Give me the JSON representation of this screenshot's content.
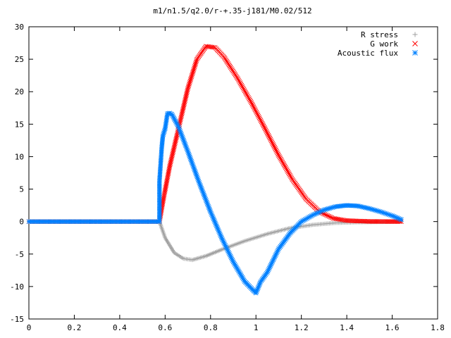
{
  "chart_data": {
    "type": "scatter",
    "title": "m1/n1.5/q2.0/r-+.35-j181/M0.02/512",
    "xlabel": "",
    "ylabel": "",
    "xlim": [
      0,
      1.8
    ],
    "ylim": [
      -15,
      30
    ],
    "x_ticks": [
      "0",
      "0.2",
      "0.4",
      "0.6",
      "0.8",
      "1",
      "1.2",
      "1.4",
      "1.6",
      "1.8"
    ],
    "y_ticks": [
      "-15",
      "-10",
      "-5",
      "0",
      "5",
      "10",
      "15",
      "20",
      "25",
      "30"
    ],
    "grid": false,
    "legend_position": "top-right",
    "series": [
      {
        "name": "R stress",
        "marker": "+",
        "color": "#a0a0a0",
        "points": [
          [
            0,
            0
          ],
          [
            0.2,
            0
          ],
          [
            0.4,
            0
          ],
          [
            0.575,
            0
          ],
          [
            0.6,
            -2.5
          ],
          [
            0.64,
            -4.8
          ],
          [
            0.68,
            -5.7
          ],
          [
            0.72,
            -5.9
          ],
          [
            0.78,
            -5.3
          ],
          [
            0.85,
            -4.3
          ],
          [
            0.95,
            -3.0
          ],
          [
            1.05,
            -1.9
          ],
          [
            1.15,
            -1.0
          ],
          [
            1.25,
            -0.5
          ],
          [
            1.35,
            -0.2
          ],
          [
            1.45,
            -0.1
          ],
          [
            1.55,
            -0.05
          ],
          [
            1.64,
            0
          ]
        ]
      },
      {
        "name": "G work",
        "marker": "x",
        "color": "#ff0000",
        "points": [
          [
            0,
            0
          ],
          [
            0.2,
            0
          ],
          [
            0.4,
            0
          ],
          [
            0.575,
            0
          ],
          [
            0.59,
            3
          ],
          [
            0.62,
            8.5
          ],
          [
            0.66,
            14.5
          ],
          [
            0.7,
            20.5
          ],
          [
            0.74,
            25
          ],
          [
            0.78,
            27
          ],
          [
            0.82,
            26.8
          ],
          [
            0.86,
            25.3
          ],
          [
            0.92,
            22
          ],
          [
            0.98,
            18.3
          ],
          [
            1.04,
            14.3
          ],
          [
            1.1,
            10.2
          ],
          [
            1.16,
            6.5
          ],
          [
            1.22,
            3.5
          ],
          [
            1.28,
            1.5
          ],
          [
            1.34,
            0.5
          ],
          [
            1.4,
            0.15
          ],
          [
            1.5,
            0.02
          ],
          [
            1.64,
            0
          ]
        ]
      },
      {
        "name": "Acoustic flux",
        "marker": "*",
        "color": "#0080ff",
        "points": [
          [
            0,
            0
          ],
          [
            0.2,
            0
          ],
          [
            0.4,
            0
          ],
          [
            0.575,
            0
          ],
          [
            0.575,
            6.2
          ],
          [
            0.585,
            11.4
          ],
          [
            0.59,
            13.2
          ],
          [
            0.6,
            14.3
          ],
          [
            0.61,
            16.6
          ],
          [
            0.62,
            16.7
          ],
          [
            0.63,
            16.5
          ],
          [
            0.66,
            14.5
          ],
          [
            0.7,
            10.8
          ],
          [
            0.75,
            6
          ],
          [
            0.8,
            1.5
          ],
          [
            0.85,
            -2.6
          ],
          [
            0.9,
            -6.2
          ],
          [
            0.95,
            -9.2
          ],
          [
            0.98,
            -10.3
          ],
          [
            1.0,
            -11
          ],
          [
            1.02,
            -9.3
          ],
          [
            1.05,
            -7.8
          ],
          [
            1.1,
            -4.2
          ],
          [
            1.15,
            -1.8
          ],
          [
            1.2,
            0
          ],
          [
            1.25,
            1
          ],
          [
            1.3,
            1.8
          ],
          [
            1.35,
            2.3
          ],
          [
            1.4,
            2.5
          ],
          [
            1.45,
            2.4
          ],
          [
            1.5,
            2
          ],
          [
            1.55,
            1.5
          ],
          [
            1.6,
            0.9
          ],
          [
            1.64,
            0.3
          ]
        ]
      }
    ]
  }
}
